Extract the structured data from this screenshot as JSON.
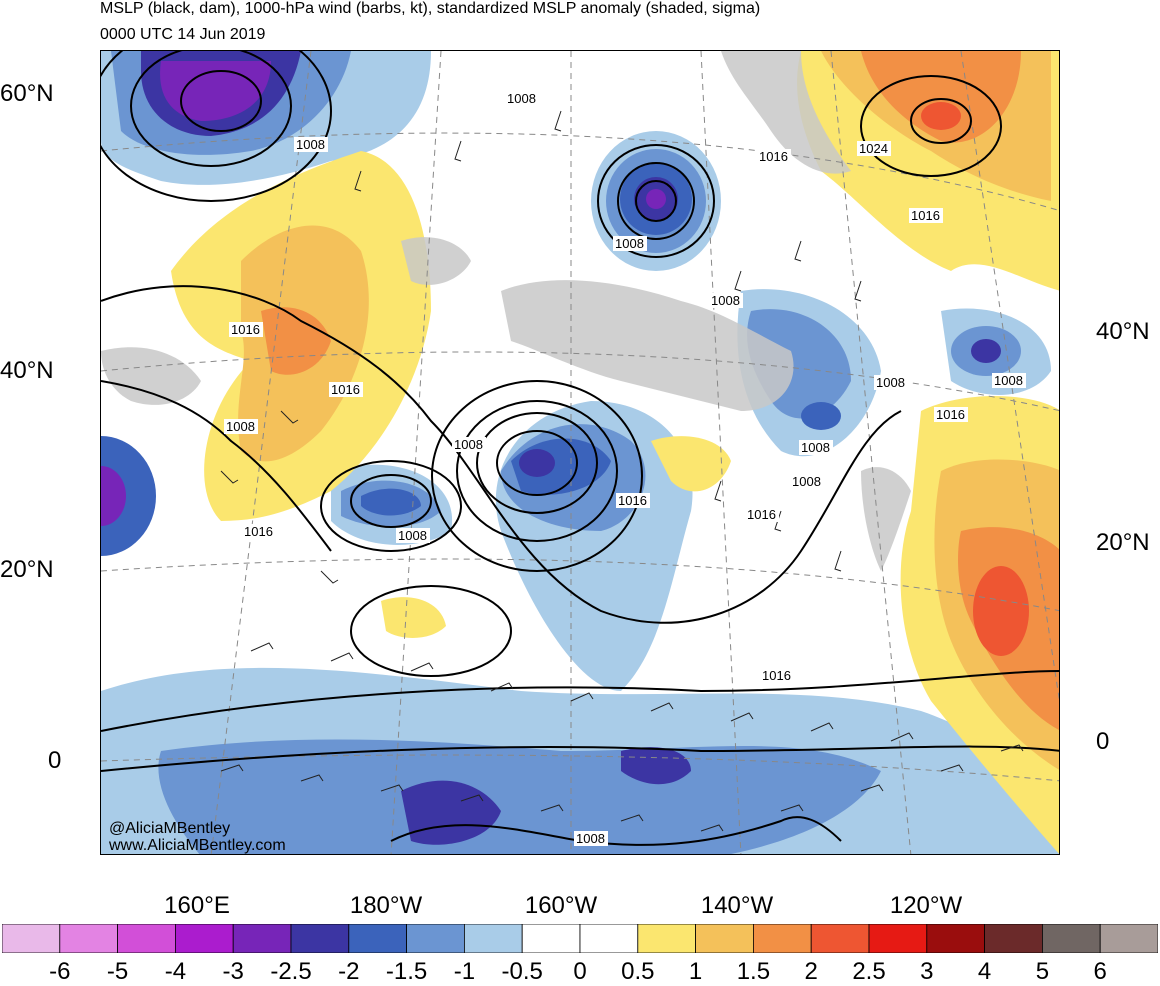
{
  "title": {
    "line1": "MSLP (black, dam), 1000-hPa wind (barbs, kt), standardized MSLP anomaly (shaded, sigma)",
    "line2": "0000 UTC 14 Jun 2019"
  },
  "watermark": {
    "handle": "@AliciaMBentley",
    "url": "www.AliciaMBentley.com"
  },
  "axes": {
    "lat_left": [
      "60°N",
      "40°N",
      "20°N",
      "0"
    ],
    "lat_right": [
      "40°N",
      "20°N",
      "0"
    ],
    "lon_bottom": [
      "160°E",
      "180°W",
      "160°W",
      "140°W",
      "120°W"
    ]
  },
  "isobar_labels": [
    "1008",
    "1008",
    "1008",
    "1016",
    "1024",
    "1016",
    "1008",
    "1016",
    "1008",
    "1008",
    "1016",
    "1008",
    "1008",
    "1008",
    "1008",
    "1016",
    "1016",
    "1016",
    "1008",
    "1016",
    "1016",
    "1008"
  ],
  "colorbar": {
    "labels": [
      "-6",
      "-5",
      "-4",
      "-3",
      "-2.5",
      "-2",
      "-1.5",
      "-1",
      "-0.5",
      "0",
      "0.5",
      "1",
      "1.5",
      "2",
      "2.5",
      "3",
      "4",
      "5",
      "6"
    ],
    "colors": [
      "#e9b9e9",
      "#e383e3",
      "#d24fd8",
      "#ab1cce",
      "#7725b8",
      "#3c35a3",
      "#3b63bb",
      "#6b95d2",
      "#a9cce8",
      "#ffffff",
      "#ffffff",
      "#fbe66f",
      "#f4c15a",
      "#f29045",
      "#ee5632",
      "#e61a14",
      "#9a0d0d",
      "#6b2a2a",
      "#706663",
      "#a89c99"
    ]
  },
  "map_colors": {
    "land": "#c8c8c8",
    "grid": "#888888"
  }
}
